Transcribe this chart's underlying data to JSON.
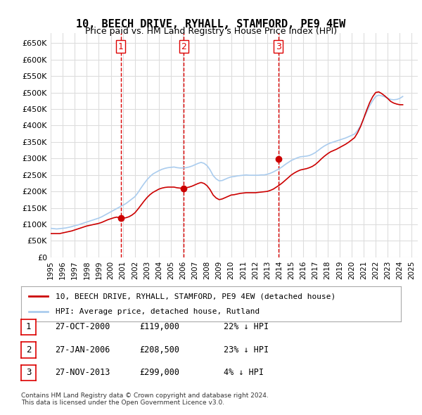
{
  "title": "10, BEECH DRIVE, RYHALL, STAMFORD, PE9 4EW",
  "subtitle": "Price paid vs. HM Land Registry's House Price Index (HPI)",
  "ylabel_ticks": [
    "£0",
    "£50K",
    "£100K",
    "£150K",
    "£200K",
    "£250K",
    "£300K",
    "£350K",
    "£400K",
    "£450K",
    "£500K",
    "£550K",
    "£600K",
    "£650K"
  ],
  "ylim": [
    0,
    680000
  ],
  "yticks": [
    0,
    50000,
    100000,
    150000,
    200000,
    250000,
    300000,
    350000,
    400000,
    450000,
    500000,
    550000,
    600000,
    650000
  ],
  "xmin": 1995.0,
  "xmax": 2025.5,
  "sale_dates": [
    2000.82,
    2006.07,
    2013.91
  ],
  "sale_prices": [
    119000,
    208500,
    299000
  ],
  "sale_labels": [
    "1",
    "2",
    "3"
  ],
  "vline_color": "#dd0000",
  "vline_style": "--",
  "sale_marker_color": "#cc0000",
  "hpi_color": "#aaccee",
  "price_color": "#cc0000",
  "background_color": "#ffffff",
  "grid_color": "#dddddd",
  "legend_price_label": "10, BEECH DRIVE, RYHALL, STAMFORD, PE9 4EW (detached house)",
  "legend_hpi_label": "HPI: Average price, detached house, Rutland",
  "table_entries": [
    {
      "label": "1",
      "date": "27-OCT-2000",
      "price": "£119,000",
      "pct": "22% ↓ HPI"
    },
    {
      "label": "2",
      "date": "27-JAN-2006",
      "price": "£208,500",
      "pct": "23% ↓ HPI"
    },
    {
      "label": "3",
      "date": "27-NOV-2013",
      "price": "£299,000",
      "pct": "4% ↓ HPI"
    }
  ],
  "footer": "Contains HM Land Registry data © Crown copyright and database right 2024.\nThis data is licensed under the Open Government Licence v3.0.",
  "hpi_data_x": [
    1995.0,
    1995.25,
    1995.5,
    1995.75,
    1996.0,
    1996.25,
    1996.5,
    1996.75,
    1997.0,
    1997.25,
    1997.5,
    1997.75,
    1998.0,
    1998.25,
    1998.5,
    1998.75,
    1999.0,
    1999.25,
    1999.5,
    1999.75,
    2000.0,
    2000.25,
    2000.5,
    2000.75,
    2001.0,
    2001.25,
    2001.5,
    2001.75,
    2002.0,
    2002.25,
    2002.5,
    2002.75,
    2003.0,
    2003.25,
    2003.5,
    2003.75,
    2004.0,
    2004.25,
    2004.5,
    2004.75,
    2005.0,
    2005.25,
    2005.5,
    2005.75,
    2006.0,
    2006.25,
    2006.5,
    2006.75,
    2007.0,
    2007.25,
    2007.5,
    2007.75,
    2008.0,
    2008.25,
    2008.5,
    2008.75,
    2009.0,
    2009.25,
    2009.5,
    2009.75,
    2010.0,
    2010.25,
    2010.5,
    2010.75,
    2011.0,
    2011.25,
    2011.5,
    2011.75,
    2012.0,
    2012.25,
    2012.5,
    2012.75,
    2013.0,
    2013.25,
    2013.5,
    2013.75,
    2014.0,
    2014.25,
    2014.5,
    2014.75,
    2015.0,
    2015.25,
    2015.5,
    2015.75,
    2016.0,
    2016.25,
    2016.5,
    2016.75,
    2017.0,
    2017.25,
    2017.5,
    2017.75,
    2018.0,
    2018.25,
    2018.5,
    2018.75,
    2019.0,
    2019.25,
    2019.5,
    2019.75,
    2020.0,
    2020.25,
    2020.5,
    2020.75,
    2021.0,
    2021.25,
    2021.5,
    2021.75,
    2022.0,
    2022.25,
    2022.5,
    2022.75,
    2023.0,
    2023.25,
    2023.5,
    2023.75,
    2024.0,
    2024.25
  ],
  "hpi_data_y": [
    88000,
    87000,
    86000,
    87000,
    88000,
    89000,
    91000,
    93000,
    96000,
    98000,
    101000,
    104000,
    107000,
    110000,
    113000,
    116000,
    119000,
    123000,
    128000,
    133000,
    138000,
    143000,
    148000,
    153000,
    158000,
    163000,
    170000,
    177000,
    184000,
    196000,
    210000,
    223000,
    235000,
    245000,
    253000,
    258000,
    263000,
    267000,
    270000,
    272000,
    273000,
    274000,
    272000,
    271000,
    271000,
    272000,
    274000,
    277000,
    281000,
    285000,
    288000,
    285000,
    278000,
    265000,
    248000,
    238000,
    232000,
    233000,
    237000,
    241000,
    244000,
    245000,
    247000,
    248000,
    249000,
    250000,
    249000,
    249000,
    249000,
    249000,
    250000,
    250000,
    252000,
    255000,
    259000,
    264000,
    269000,
    275000,
    282000,
    288000,
    294000,
    298000,
    302000,
    305000,
    306000,
    307000,
    309000,
    313000,
    318000,
    325000,
    332000,
    338000,
    343000,
    347000,
    350000,
    353000,
    356000,
    359000,
    362000,
    366000,
    370000,
    374000,
    385000,
    400000,
    420000,
    440000,
    460000,
    475000,
    488000,
    492000,
    490000,
    487000,
    483000,
    479000,
    478000,
    479000,
    482000,
    488000
  ],
  "price_line_x": [
    1995.0,
    1995.25,
    1995.5,
    1995.75,
    1996.0,
    1996.25,
    1996.5,
    1996.75,
    1997.0,
    1997.25,
    1997.5,
    1997.75,
    1998.0,
    1998.25,
    1998.5,
    1998.75,
    1999.0,
    1999.25,
    1999.5,
    1999.75,
    2000.0,
    2000.25,
    2000.5,
    2000.75,
    2001.0,
    2001.25,
    2001.5,
    2001.75,
    2002.0,
    2002.25,
    2002.5,
    2002.75,
    2003.0,
    2003.25,
    2003.5,
    2003.75,
    2004.0,
    2004.25,
    2004.5,
    2004.75,
    2005.0,
    2005.25,
    2005.5,
    2005.75,
    2006.0,
    2006.25,
    2006.5,
    2006.75,
    2007.0,
    2007.25,
    2007.5,
    2007.75,
    2008.0,
    2008.25,
    2008.5,
    2008.75,
    2009.0,
    2009.25,
    2009.5,
    2009.75,
    2010.0,
    2010.25,
    2010.5,
    2010.75,
    2011.0,
    2011.25,
    2011.5,
    2011.75,
    2012.0,
    2012.25,
    2012.5,
    2012.75,
    2013.0,
    2013.25,
    2013.5,
    2013.75,
    2014.0,
    2014.25,
    2014.5,
    2014.75,
    2015.0,
    2015.25,
    2015.5,
    2015.75,
    2016.0,
    2016.25,
    2016.5,
    2016.75,
    2017.0,
    2017.25,
    2017.5,
    2017.75,
    2018.0,
    2018.25,
    2018.5,
    2018.75,
    2019.0,
    2019.25,
    2019.5,
    2019.75,
    2020.0,
    2020.25,
    2020.5,
    2020.75,
    2021.0,
    2021.25,
    2021.5,
    2021.75,
    2022.0,
    2022.25,
    2022.5,
    2022.75,
    2023.0,
    2023.25,
    2023.5,
    2023.75,
    2024.0,
    2024.25
  ],
  "price_line_y": [
    72000,
    72000,
    72000,
    72000,
    74000,
    76000,
    78000,
    80000,
    83000,
    86000,
    89000,
    92000,
    95000,
    97000,
    99000,
    101000,
    103000,
    106000,
    110000,
    114000,
    117000,
    120000,
    122000,
    119000,
    119000,
    120000,
    123000,
    128000,
    135000,
    146000,
    158000,
    170000,
    181000,
    190000,
    197000,
    202000,
    207000,
    210000,
    212000,
    213000,
    213000,
    213000,
    211000,
    210000,
    210000,
    211000,
    213000,
    216000,
    220000,
    224000,
    227000,
    224000,
    217000,
    205000,
    189000,
    180000,
    175000,
    177000,
    181000,
    185000,
    189000,
    190000,
    192000,
    194000,
    195000,
    196000,
    196000,
    196000,
    196000,
    197000,
    198000,
    199000,
    200000,
    203000,
    207000,
    213000,
    219000,
    226000,
    234000,
    242000,
    250000,
    256000,
    261000,
    265000,
    267000,
    269000,
    272000,
    276000,
    282000,
    290000,
    299000,
    307000,
    314000,
    320000,
    324000,
    328000,
    333000,
    338000,
    343000,
    349000,
    356000,
    363000,
    378000,
    397000,
    421000,
    446000,
    469000,
    487000,
    500000,
    502000,
    497000,
    490000,
    482000,
    473000,
    468000,
    465000,
    463000,
    463000
  ],
  "xtick_years": [
    1995,
    1996,
    1997,
    1998,
    1999,
    2000,
    2001,
    2002,
    2003,
    2004,
    2005,
    2006,
    2007,
    2008,
    2009,
    2010,
    2011,
    2012,
    2013,
    2014,
    2015,
    2016,
    2017,
    2018,
    2019,
    2020,
    2021,
    2022,
    2023,
    2024,
    2025
  ]
}
